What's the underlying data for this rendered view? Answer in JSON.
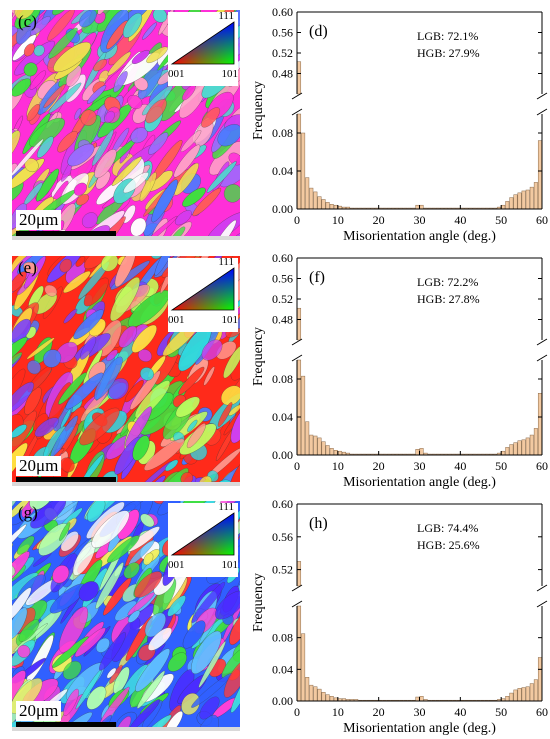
{
  "maps": [
    {
      "label": "(c)",
      "scale": "20μm",
      "ipf": {
        "top": "111",
        "left": "001",
        "right": "101"
      },
      "palette": [
        "#ff2fd8",
        "#d23cf0",
        "#3fe03f",
        "#4a7bff",
        "#ff5a5a",
        "#f0e050",
        "#9a6cff",
        "#50d8d0",
        "#ffa0c8",
        "#ffffff"
      ]
    },
    {
      "label": "(e)",
      "scale": "20μm",
      "ipf": {
        "top": "111",
        "left": "001",
        "right": "101"
      },
      "palette": [
        "#ff2a1a",
        "#ff3b2a",
        "#3fe03f",
        "#4a7bff",
        "#7a40ff",
        "#30d8e0",
        "#ffe040",
        "#d040f0",
        "#ff9a90",
        "#c0ff60"
      ]
    },
    {
      "label": "(g)",
      "scale": "20μm",
      "ipf": {
        "top": "111",
        "left": "001",
        "right": "101"
      },
      "palette": [
        "#3060ff",
        "#4b2cff",
        "#40e0e0",
        "#60c0ff",
        "#ff3c3c",
        "#40e040",
        "#ff40d8",
        "#f0f060",
        "#b0ffb0",
        "#ffffff"
      ]
    }
  ],
  "chart_data": [
    {
      "type": "bar",
      "panel": "(d)",
      "xlabel": "Misorientation angle (deg.)",
      "ylabel": "Frequency",
      "annotations": [
        "LGB: 72.1%",
        "HGB: 27.9%"
      ],
      "xlim": [
        0,
        60
      ],
      "xticks": [
        0,
        10,
        20,
        30,
        40,
        50,
        60
      ],
      "ylim_upper": [
        0.44,
        0.6
      ],
      "yticks_upper": [
        "0.48",
        "0.52",
        "0.56",
        "0.60"
      ],
      "ylim_lower": [
        0,
        0.1
      ],
      "yticks_lower": [
        "0.00",
        "0.04",
        "0.08"
      ],
      "bin_width": 1,
      "values": [
        0.503,
        0.08,
        0.033,
        0.022,
        0.018,
        0.013,
        0.01,
        0.007,
        0.005,
        0.004,
        0.003,
        0.002,
        0.002,
        0.001,
        0.001,
        0.001,
        0.001,
        0.001,
        0.001,
        0.001,
        0.001,
        0.001,
        0.001,
        0.001,
        0.001,
        0.001,
        0.001,
        0.001,
        0.001,
        0.004,
        0.004,
        0.001,
        0.001,
        0.001,
        0.001,
        0.001,
        0.001,
        0.001,
        0.001,
        0.001,
        0.001,
        0.001,
        0.001,
        0.001,
        0.001,
        0.001,
        0.001,
        0.001,
        0.001,
        0.002,
        0.004,
        0.008,
        0.012,
        0.015,
        0.017,
        0.019,
        0.02,
        0.023,
        0.028,
        0.072
      ]
    },
    {
      "type": "bar",
      "panel": "(f)",
      "xlabel": "Misorientation angle (deg.)",
      "ylabel": "Frequency",
      "annotations": [
        "LGB: 72.2%",
        "HGB: 27.8%"
      ],
      "xlim": [
        0,
        60
      ],
      "xticks": [
        0,
        10,
        20,
        30,
        40,
        50,
        60
      ],
      "ylim_upper": [
        0.44,
        0.6
      ],
      "yticks_upper": [
        "0.48",
        "0.52",
        "0.56",
        "0.60"
      ],
      "ylim_lower": [
        0,
        0.1
      ],
      "yticks_lower": [
        "0.00",
        "0.04",
        "0.08"
      ],
      "bin_width": 1,
      "values": [
        0.502,
        0.083,
        0.035,
        0.021,
        0.02,
        0.018,
        0.014,
        0.01,
        0.007,
        0.005,
        0.004,
        0.003,
        0.002,
        0.001,
        0.001,
        0.001,
        0.001,
        0.001,
        0.001,
        0.001,
        0.001,
        0.001,
        0.001,
        0.001,
        0.001,
        0.001,
        0.001,
        0.001,
        0.001,
        0.006,
        0.007,
        0.002,
        0.001,
        0.001,
        0.001,
        0.001,
        0.001,
        0.001,
        0.001,
        0.001,
        0.001,
        0.001,
        0.001,
        0.001,
        0.001,
        0.001,
        0.001,
        0.001,
        0.001,
        0.002,
        0.004,
        0.008,
        0.011,
        0.013,
        0.015,
        0.016,
        0.018,
        0.021,
        0.028,
        0.065
      ]
    },
    {
      "type": "bar",
      "panel": "(h)",
      "xlabel": "Misorientation angle (deg.)",
      "ylabel": "Frequency",
      "annotations": [
        "LGB: 74.4%",
        "HGB: 25.6%"
      ],
      "xlim": [
        0,
        60
      ],
      "xticks": [
        0,
        10,
        20,
        30,
        40,
        50,
        60
      ],
      "ylim_upper": [
        0.5,
        0.6
      ],
      "yticks_upper": [
        "0.52",
        "0.56",
        "0.60"
      ],
      "ylim_lower": [
        0,
        0.12
      ],
      "yticks_lower": [
        "0.00",
        "0.04",
        "0.08"
      ],
      "bin_width": 1,
      "values": [
        0.53,
        0.085,
        0.03,
        0.02,
        0.018,
        0.015,
        0.011,
        0.008,
        0.006,
        0.004,
        0.003,
        0.003,
        0.002,
        0.002,
        0.002,
        0.001,
        0.001,
        0.001,
        0.001,
        0.001,
        0.001,
        0.001,
        0.001,
        0.001,
        0.001,
        0.001,
        0.001,
        0.001,
        0.001,
        0.005,
        0.006,
        0.002,
        0.001,
        0.001,
        0.001,
        0.001,
        0.001,
        0.001,
        0.001,
        0.001,
        0.001,
        0.001,
        0.001,
        0.001,
        0.001,
        0.001,
        0.001,
        0.001,
        0.001,
        0.002,
        0.003,
        0.006,
        0.01,
        0.014,
        0.016,
        0.017,
        0.018,
        0.022,
        0.027,
        0.055
      ]
    }
  ]
}
